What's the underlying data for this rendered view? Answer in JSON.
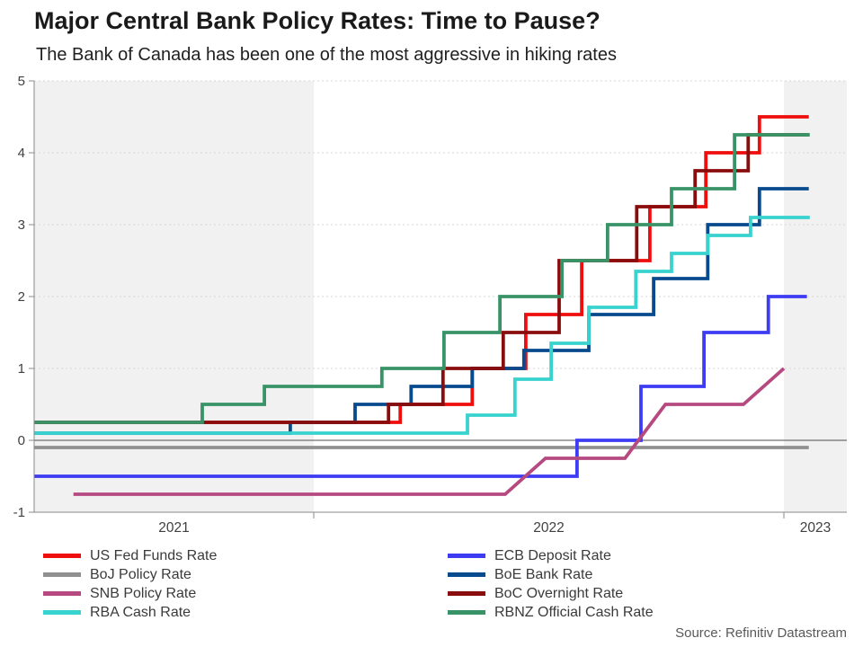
{
  "title": "Major Central Bank Policy Rates: Time to Pause?",
  "subtitle": "The Bank of Canada has been one of the most aggressive in hiking rates",
  "source": "Source: Refinitiv Datastream",
  "colors": {
    "band": "#f1f1f1",
    "grid": "#d6d6d6",
    "axis": "#8a8a8a",
    "zero_line": "#4d4d4d",
    "tick_text": "#404040"
  },
  "legend": {
    "columns": [
      [
        "US Fed Funds Rate",
        "BoJ Policy Rate",
        "SNB Policy Rate",
        "RBA Cash Rate"
      ],
      [
        "ECB Deposit Rate",
        "BoE Bank Rate",
        "BoC Overnight Rate",
        "RBNZ Official Cash Rate"
      ]
    ]
  },
  "chart_data": {
    "type": "line",
    "title": "Major Central Bank Policy Rates: Time to Pause?",
    "subtitle": "The Bank of Canada has been one of the most aggressive in hiking rates",
    "x_axis": {
      "tick_labels": [
        "2021",
        "2022",
        "2023"
      ],
      "unit": "year (decimal)",
      "range": [
        2021.405,
        2023.133
      ],
      "shaded_bands": [
        "2021",
        "2023"
      ],
      "grid": false
    },
    "y_axis": {
      "tick_values": [
        -1,
        0,
        1,
        2,
        3,
        4,
        5
      ],
      "range": [
        -1,
        5
      ],
      "unit": "%",
      "grid": "dashed at 1..5, solid thin line at 0"
    },
    "legend_position": "bottom, two columns",
    "series": [
      {
        "name": "US Fed Funds Rate",
        "color": "#ee0e0e",
        "mode": "step",
        "end": 2023.053,
        "points": [
          [
            2021.405,
            0.25
          ],
          [
            2022.184,
            0.5
          ],
          [
            2022.337,
            1.0
          ],
          [
            2022.451,
            1.75
          ],
          [
            2022.57,
            2.5
          ],
          [
            2022.715,
            3.25
          ],
          [
            2022.834,
            4.0
          ],
          [
            2022.948,
            4.5
          ]
        ]
      },
      {
        "name": "BoE Bank Rate",
        "color": "#074a8d",
        "mode": "step",
        "end": 2023.053,
        "points": [
          [
            2021.405,
            0.1
          ],
          [
            2021.95,
            0.25
          ],
          [
            2022.088,
            0.5
          ],
          [
            2022.207,
            0.75
          ],
          [
            2022.337,
            1.0
          ],
          [
            2022.447,
            1.25
          ],
          [
            2022.585,
            1.75
          ],
          [
            2022.723,
            2.25
          ],
          [
            2022.838,
            3.0
          ],
          [
            2022.948,
            3.5
          ]
        ]
      },
      {
        "name": "BoC Overnight Rate",
        "color": "#8a0d0d",
        "mode": "step",
        "end": 2023.053,
        "points": [
          [
            2021.405,
            0.25
          ],
          [
            2022.159,
            0.5
          ],
          [
            2022.275,
            1.0
          ],
          [
            2022.403,
            1.5
          ],
          [
            2022.522,
            2.5
          ],
          [
            2022.687,
            3.25
          ],
          [
            2022.811,
            3.75
          ],
          [
            2022.924,
            4.25
          ]
        ]
      },
      {
        "name": "RBNZ Official Cash Rate",
        "color": "#389467",
        "mode": "step",
        "end": 2023.055,
        "points": [
          [
            2021.405,
            0.25
          ],
          [
            2021.763,
            0.5
          ],
          [
            2021.895,
            0.75
          ],
          [
            2022.145,
            1.0
          ],
          [
            2022.277,
            1.5
          ],
          [
            2022.396,
            2.0
          ],
          [
            2022.528,
            2.5
          ],
          [
            2022.625,
            3.0
          ],
          [
            2022.761,
            3.5
          ],
          [
            2022.895,
            4.25
          ]
        ]
      },
      {
        "name": "BoJ Policy Rate",
        "color": "#909090",
        "mode": "step",
        "end": 2023.053,
        "points": [
          [
            2021.405,
            -0.1
          ]
        ]
      },
      {
        "name": "ECB Deposit Rate",
        "color": "#3e3cf2",
        "mode": "step",
        "end": 2023.049,
        "points": [
          [
            2021.405,
            -0.5
          ],
          [
            2022.56,
            0.0
          ],
          [
            2022.696,
            0.75
          ],
          [
            2022.83,
            1.5
          ],
          [
            2022.967,
            2.0
          ]
        ]
      },
      {
        "name": "SNB Policy Rate",
        "color": "#b54980",
        "mode": "linear",
        "end": 2023.0,
        "points": [
          [
            2021.489,
            -0.75
          ],
          [
            2022.407,
            -0.75
          ],
          [
            2022.493,
            -0.25
          ],
          [
            2022.662,
            -0.25
          ],
          [
            2022.748,
            0.5
          ],
          [
            2022.914,
            0.5
          ],
          [
            2023.0,
            1.0
          ]
        ]
      },
      {
        "name": "RBA Cash Rate",
        "color": "#38d2cf",
        "mode": "step",
        "end": 2023.055,
        "points": [
          [
            2021.405,
            0.1
          ],
          [
            2022.327,
            0.35
          ],
          [
            2022.428,
            0.85
          ],
          [
            2022.505,
            1.35
          ],
          [
            2022.585,
            1.85
          ],
          [
            2022.685,
            2.35
          ],
          [
            2022.761,
            2.6
          ],
          [
            2022.838,
            2.85
          ],
          [
            2022.929,
            3.1
          ]
        ]
      }
    ]
  }
}
